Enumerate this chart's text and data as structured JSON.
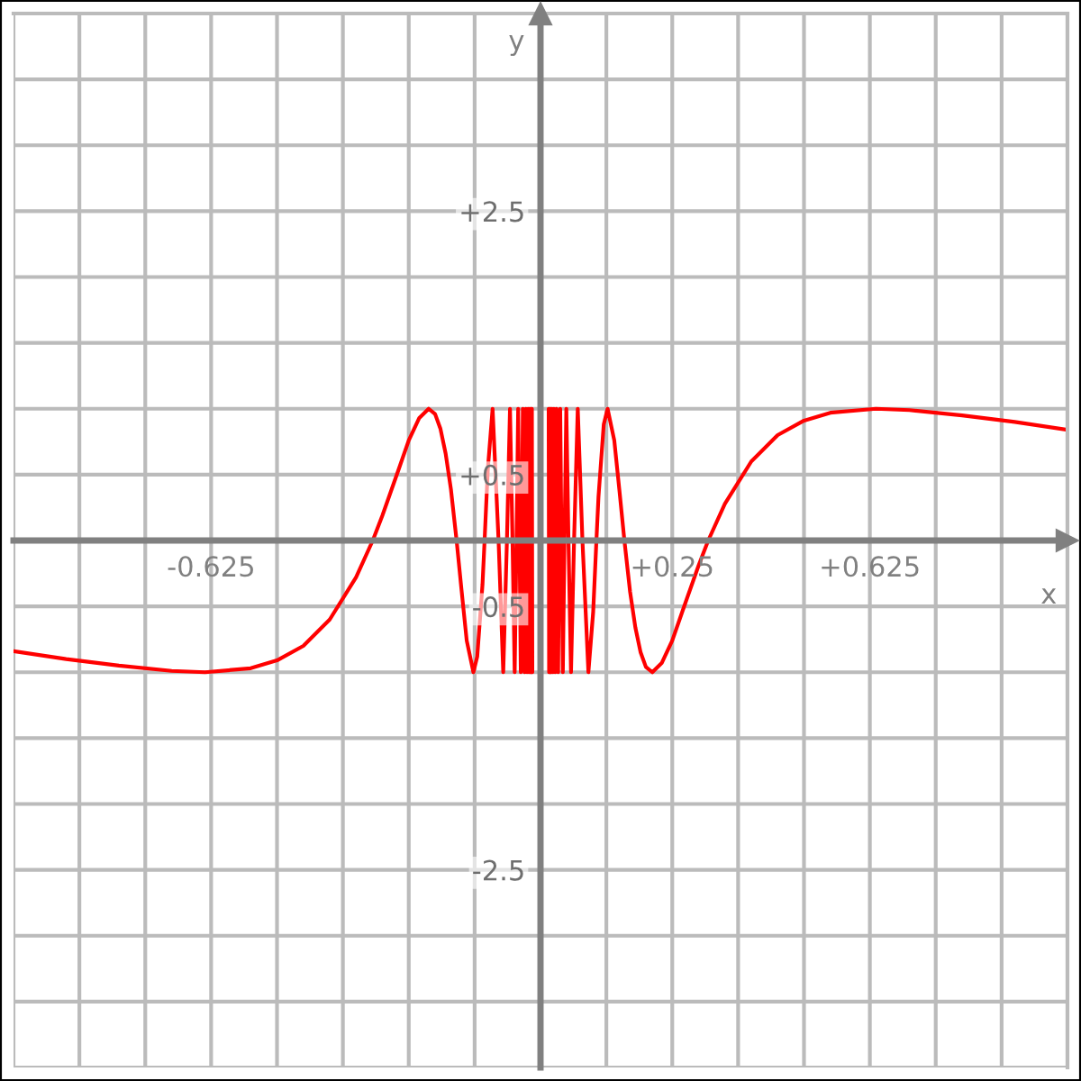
{
  "chart_data": {
    "type": "line",
    "xlabel": "x",
    "ylabel": "y",
    "xlim": [
      -1,
      1
    ],
    "ylim": [
      -4,
      4
    ],
    "xticks": [
      {
        "value": -1,
        "label": null
      },
      {
        "value": -0.875,
        "label": null
      },
      {
        "value": -0.75,
        "label": null
      },
      {
        "value": -0.625,
        "label": "-0.625"
      },
      {
        "value": -0.5,
        "label": null
      },
      {
        "value": -0.375,
        "label": null
      },
      {
        "value": -0.25,
        "label": null
      },
      {
        "value": -0.125,
        "label": null
      },
      {
        "value": 0,
        "label": null
      },
      {
        "value": 0.125,
        "label": null
      },
      {
        "value": 0.25,
        "label": "+0.25"
      },
      {
        "value": 0.375,
        "label": null
      },
      {
        "value": 0.5,
        "label": null
      },
      {
        "value": 0.625,
        "label": "+0.625"
      },
      {
        "value": 0.75,
        "label": null
      },
      {
        "value": 0.875,
        "label": null
      },
      {
        "value": 1,
        "label": null
      }
    ],
    "yticks": [
      {
        "value": -4,
        "label": null
      },
      {
        "value": -3.5,
        "label": null
      },
      {
        "value": -3,
        "label": null
      },
      {
        "value": -2.5,
        "label": "-2.5"
      },
      {
        "value": -2,
        "label": null
      },
      {
        "value": -1.5,
        "label": null
      },
      {
        "value": -1,
        "label": null
      },
      {
        "value": -0.5,
        "label": "-0.5"
      },
      {
        "value": 0,
        "label": null
      },
      {
        "value": 0.5,
        "label": "+0.5"
      },
      {
        "value": 1,
        "label": null
      },
      {
        "value": 1.5,
        "label": null
      },
      {
        "value": 2,
        "label": null
      },
      {
        "value": 2.5,
        "label": "+2.5"
      },
      {
        "value": 3,
        "label": null
      },
      {
        "value": 3.5,
        "label": null
      },
      {
        "value": 4,
        "label": null
      }
    ],
    "grid": true,
    "line_style": "solid",
    "marker": "none",
    "series": [
      {
        "color": "#ff0000",
        "x": [
          -1,
          -0.9,
          -0.8,
          -0.7,
          -0.6366,
          -0.55,
          -0.5,
          -0.45,
          -0.4,
          -0.35,
          -0.3183,
          -0.3,
          -0.27,
          -0.25,
          -0.23,
          -0.2122,
          -0.2,
          -0.19,
          -0.18,
          -0.17,
          -0.1592,
          -0.15,
          -0.14,
          -0.1273,
          -0.12,
          -0.11,
          -0.1061,
          -0.1,
          -0.0909,
          -0.0796,
          -0.0707,
          -0.0637,
          -0.0579,
          -0.0531,
          -0.049,
          -0.0455,
          -0.0424,
          -0.0398,
          -0.0374,
          -0.0354,
          -0.0335,
          -0.0318,
          -0.0303,
          -0.0277,
          -0.0255,
          -0.0236,
          -0.022,
          -0.0205,
          -0.0193,
          -0.0182,
          -0.0172,
          -0.0163,
          -0.0155,
          null,
          0.0155,
          0.0163,
          0.0172,
          0.0182,
          0.0193,
          0.0205,
          0.022,
          0.0236,
          0.0255,
          0.0277,
          0.0303,
          0.0318,
          0.0335,
          0.0354,
          0.0374,
          0.0398,
          0.0424,
          0.0455,
          0.049,
          0.0531,
          0.0579,
          0.0637,
          0.0707,
          0.0796,
          0.0909,
          0.1,
          0.1061,
          0.11,
          0.12,
          0.1273,
          0.14,
          0.15,
          0.1592,
          0.17,
          0.18,
          0.19,
          0.2,
          0.2122,
          0.23,
          0.25,
          0.27,
          0.3,
          0.3183,
          0.35,
          0.4,
          0.45,
          0.5,
          0.55,
          0.6366,
          0.7,
          0.8,
          0.9,
          1
        ],
        "values": [
          -0.84,
          -0.9,
          -0.95,
          -0.99,
          -1,
          -0.97,
          -0.91,
          -0.8,
          -0.6,
          -0.28,
          0,
          0.19,
          0.53,
          0.76,
          0.93,
          1,
          0.96,
          0.85,
          0.66,
          0.39,
          0,
          -0.37,
          -0.76,
          -1,
          -0.88,
          -0.33,
          0,
          0.54,
          1,
          0,
          -1,
          0,
          1,
          0,
          -1,
          0,
          1,
          0,
          -1,
          0,
          1,
          0,
          -1,
          1,
          -1,
          1,
          -1,
          1,
          -1,
          1,
          -1,
          1,
          -1,
          null,
          1,
          -1,
          1,
          -1,
          1,
          -1,
          1,
          -1,
          1,
          -1,
          1,
          0,
          -1,
          0,
          1,
          0,
          -1,
          0,
          1,
          0,
          -1,
          0,
          1,
          0,
          -1,
          -0.54,
          0,
          0.33,
          0.88,
          1,
          0.76,
          0.37,
          0,
          -0.39,
          -0.66,
          -0.85,
          -0.96,
          -1,
          -0.93,
          -0.76,
          -0.53,
          -0.19,
          0,
          0.28,
          0.6,
          0.8,
          0.91,
          0.97,
          1,
          0.99,
          0.95,
          0.9,
          0.84
        ]
      }
    ]
  }
}
